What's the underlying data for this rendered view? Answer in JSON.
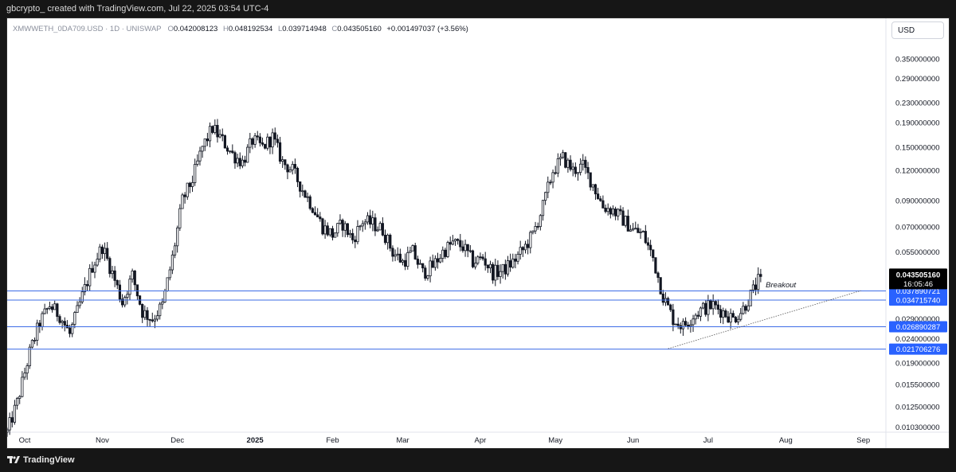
{
  "header": {
    "caption": "gbcrypto_ created with TradingView.com, Jul 22, 2025 03:54 UTC-4"
  },
  "legend": {
    "symbol": "XMWWETH_0DA709.USD · 1D · UNISWAP",
    "open_key": "O",
    "open": "0.042008123",
    "high_key": "H",
    "high": "0.048192534",
    "low_key": "L",
    "low": "0.039714948",
    "close_key": "C",
    "close": "0.043505160",
    "change": "+0.001497037 (+3.56%)"
  },
  "currency_button": "USD",
  "footer": {
    "brand": "TradingView",
    "logo_icon": "tradingview-logo-icon"
  },
  "colors": {
    "candle": "#131722",
    "level_line": "#3d6ce6",
    "label_bg": "#2962ff",
    "price_bg": "#000000"
  },
  "chart_data": {
    "type": "candlestick",
    "title": "",
    "y_scale": "log",
    "ylim": [
      0.0098,
      0.41
    ],
    "x_range": [
      "2024-09-24",
      "2025-09-10"
    ],
    "y_ticks": [
      "0.350000000",
      "0.290000000",
      "0.230000000",
      "0.190000000",
      "0.150000000",
      "0.120000000",
      "0.090000000",
      "0.070000000",
      "0.055000000",
      "0.029000000",
      "0.024000000",
      "0.019000000",
      "0.015500000",
      "0.012500000",
      "0.010300000"
    ],
    "x_ticks": [
      {
        "label": "Oct",
        "date": "2024-10-01"
      },
      {
        "label": "Nov",
        "date": "2024-11-01"
      },
      {
        "label": "Dec",
        "date": "2024-12-01"
      },
      {
        "label": "2025",
        "date": "2025-01-01"
      },
      {
        "label": "Feb",
        "date": "2025-02-01"
      },
      {
        "label": "Mar",
        "date": "2025-03-01"
      },
      {
        "label": "Apr",
        "date": "2025-04-01"
      },
      {
        "label": "May",
        "date": "2025-05-01"
      },
      {
        "label": "Jun",
        "date": "2025-06-01"
      },
      {
        "label": "Jul",
        "date": "2025-07-01"
      },
      {
        "label": "Aug",
        "date": "2025-08-01"
      },
      {
        "label": "Sep",
        "date": "2025-09-01"
      }
    ],
    "levels": [
      {
        "value": 0.037890721,
        "label": "0.037890721"
      },
      {
        "value": 0.03471574,
        "label": "0.034715740"
      },
      {
        "value": 0.026890287,
        "label": "0.026890287"
      },
      {
        "value": 0.021706276,
        "label": "0.021706276"
      }
    ],
    "last_price": {
      "value": 0.04350516,
      "label": "0.043505160",
      "countdown": "16:05:46"
    },
    "trendline": {
      "from": {
        "date": "2025-06-15",
        "value": 0.0218
      },
      "to": {
        "date": "2025-08-31",
        "value": 0.038
      }
    },
    "annotation": {
      "text": "Breakout",
      "date": "2025-07-24",
      "value": 0.0392
    },
    "path": [
      [
        "2024-09-24",
        0.0098
      ],
      [
        "2024-09-28",
        0.013
      ],
      [
        "2024-10-03",
        0.021
      ],
      [
        "2024-10-07",
        0.028
      ],
      [
        "2024-10-11",
        0.033
      ],
      [
        "2024-10-15",
        0.03
      ],
      [
        "2024-10-19",
        0.025
      ],
      [
        "2024-10-24",
        0.036
      ],
      [
        "2024-10-28",
        0.048
      ],
      [
        "2024-11-01",
        0.058
      ],
      [
        "2024-11-05",
        0.045
      ],
      [
        "2024-11-09",
        0.034
      ],
      [
        "2024-11-13",
        0.044
      ],
      [
        "2024-11-17",
        0.031
      ],
      [
        "2024-11-21",
        0.029
      ],
      [
        "2024-11-25",
        0.033
      ],
      [
        "2024-11-29",
        0.052
      ],
      [
        "2024-12-03",
        0.09
      ],
      [
        "2024-12-07",
        0.11
      ],
      [
        "2024-12-11",
        0.15
      ],
      [
        "2024-12-15",
        0.18
      ],
      [
        "2024-12-19",
        0.16
      ],
      [
        "2024-12-23",
        0.14
      ],
      [
        "2024-12-27",
        0.13
      ],
      [
        "2024-12-31",
        0.16
      ],
      [
        "2025-01-04",
        0.15
      ],
      [
        "2025-01-08",
        0.165
      ],
      [
        "2025-01-12",
        0.13
      ],
      [
        "2025-01-16",
        0.12
      ],
      [
        "2025-01-20",
        0.1
      ],
      [
        "2025-01-24",
        0.085
      ],
      [
        "2025-01-28",
        0.07
      ],
      [
        "2025-02-01",
        0.065
      ],
      [
        "2025-02-05",
        0.072
      ],
      [
        "2025-02-09",
        0.062
      ],
      [
        "2025-02-13",
        0.074
      ],
      [
        "2025-02-17",
        0.072
      ],
      [
        "2025-02-21",
        0.068
      ],
      [
        "2025-02-25",
        0.055
      ],
      [
        "2025-03-01",
        0.05
      ],
      [
        "2025-03-05",
        0.055
      ],
      [
        "2025-03-09",
        0.045
      ],
      [
        "2025-03-13",
        0.048
      ],
      [
        "2025-03-17",
        0.055
      ],
      [
        "2025-03-21",
        0.06
      ],
      [
        "2025-03-25",
        0.058
      ],
      [
        "2025-03-29",
        0.05
      ],
      [
        "2025-04-02",
        0.052
      ],
      [
        "2025-04-06",
        0.045
      ],
      [
        "2025-04-10",
        0.046
      ],
      [
        "2025-04-14",
        0.05
      ],
      [
        "2025-04-18",
        0.056
      ],
      [
        "2025-04-22",
        0.065
      ],
      [
        "2025-04-26",
        0.085
      ],
      [
        "2025-04-30",
        0.12
      ],
      [
        "2025-05-04",
        0.135
      ],
      [
        "2025-05-08",
        0.12
      ],
      [
        "2025-05-12",
        0.125
      ],
      [
        "2025-05-16",
        0.105
      ],
      [
        "2025-05-20",
        0.085
      ],
      [
        "2025-05-24",
        0.082
      ],
      [
        "2025-05-28",
        0.075
      ],
      [
        "2025-06-01",
        0.068
      ],
      [
        "2025-06-05",
        0.065
      ],
      [
        "2025-06-09",
        0.052
      ],
      [
        "2025-06-13",
        0.036
      ],
      [
        "2025-06-17",
        0.029
      ],
      [
        "2025-06-21",
        0.027
      ],
      [
        "2025-06-25",
        0.03
      ],
      [
        "2025-06-29",
        0.032
      ],
      [
        "2025-07-03",
        0.033
      ],
      [
        "2025-07-07",
        0.031
      ],
      [
        "2025-07-11",
        0.029
      ],
      [
        "2025-07-15",
        0.032
      ],
      [
        "2025-07-19",
        0.038
      ],
      [
        "2025-07-22",
        0.0435
      ]
    ]
  }
}
